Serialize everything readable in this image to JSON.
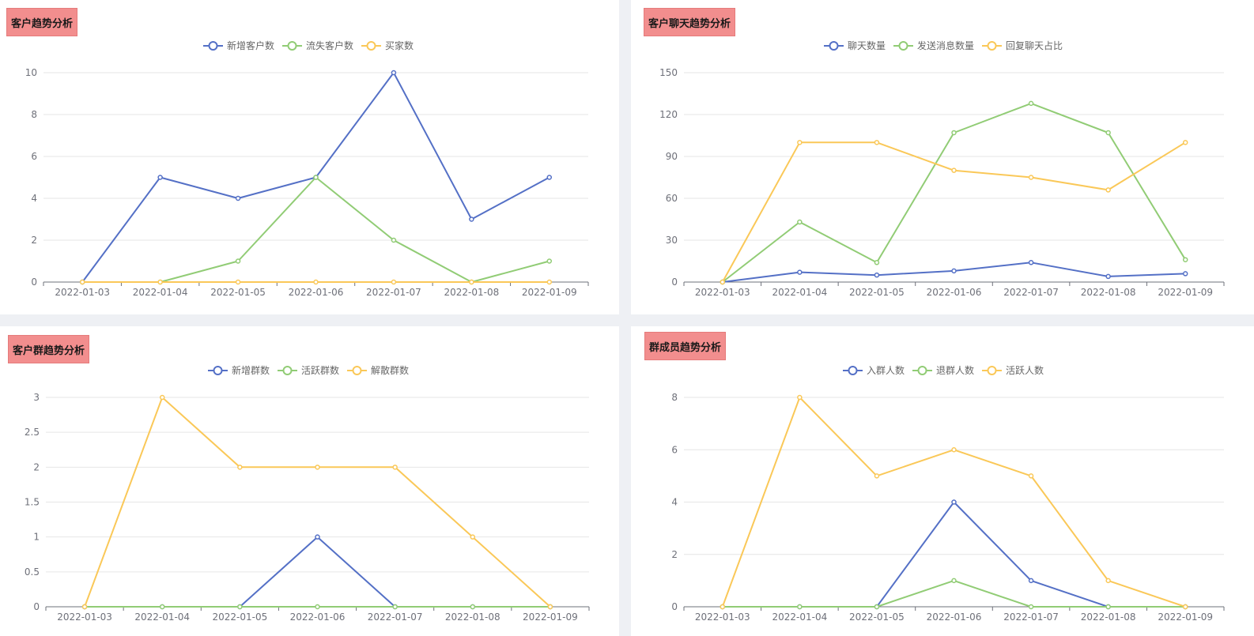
{
  "colors": {
    "blue": "#5470c6",
    "green": "#91cc75",
    "yellow": "#fac858",
    "grid": "#e6e6e6",
    "axis": "#6e7079",
    "tick_text": "#6e7079",
    "legend_text": "#666666",
    "title_bg": "#f28e8e"
  },
  "chart_data": [
    {
      "type": "line",
      "title": "客户趋势分析",
      "categories": [
        "2022-01-03",
        "2022-01-04",
        "2022-01-05",
        "2022-01-06",
        "2022-01-07",
        "2022-01-08",
        "2022-01-09"
      ],
      "yticks": [
        "0",
        "2",
        "4",
        "6",
        "8",
        "10"
      ],
      "ylim": [
        0,
        10
      ],
      "series": [
        {
          "name": "新增客户数",
          "color": "#5470c6",
          "values": [
            0,
            5,
            4,
            5,
            10,
            3,
            5
          ]
        },
        {
          "name": "流失客户数",
          "color": "#91cc75",
          "values": [
            0,
            0,
            1,
            5,
            2,
            0,
            1
          ]
        },
        {
          "name": "买家数",
          "color": "#fac858",
          "values": [
            0,
            0,
            0,
            0,
            0,
            0,
            0
          ]
        }
      ]
    },
    {
      "type": "line",
      "title": "客户聊天趋势分析",
      "categories": [
        "2022-01-03",
        "2022-01-04",
        "2022-01-05",
        "2022-01-06",
        "2022-01-07",
        "2022-01-08",
        "2022-01-09"
      ],
      "yticks": [
        "0",
        "30",
        "60",
        "90",
        "120",
        "150"
      ],
      "ylim": [
        0,
        150
      ],
      "series": [
        {
          "name": "聊天数量",
          "color": "#5470c6",
          "values": [
            0,
            7,
            5,
            8,
            14,
            4,
            6
          ]
        },
        {
          "name": "发送消息数量",
          "color": "#91cc75",
          "values": [
            0,
            43,
            14,
            107,
            128,
            107,
            16
          ]
        },
        {
          "name": "回复聊天占比",
          "color": "#fac858",
          "values": [
            0,
            100,
            100,
            80,
            75,
            66,
            100
          ]
        }
      ]
    },
    {
      "type": "line",
      "title": "客户群趋势分析",
      "categories": [
        "2022-01-03",
        "2022-01-04",
        "2022-01-05",
        "2022-01-06",
        "2022-01-07",
        "2022-01-08",
        "2022-01-09"
      ],
      "yticks": [
        "0",
        "0.5",
        "1",
        "1.5",
        "2",
        "2.5",
        "3"
      ],
      "ylim": [
        0,
        3
      ],
      "series": [
        {
          "name": "新增群数",
          "color": "#5470c6",
          "values": [
            0,
            0,
            0,
            1,
            0,
            0,
            0
          ]
        },
        {
          "name": "活跃群数",
          "color": "#91cc75",
          "values": [
            0,
            0,
            0,
            0,
            0,
            0,
            0
          ]
        },
        {
          "name": "解散群数",
          "color": "#fac858",
          "values": [
            0,
            3,
            2,
            2,
            2,
            1,
            0
          ]
        }
      ]
    },
    {
      "type": "line",
      "title": "群成员趋势分析",
      "categories": [
        "2022-01-03",
        "2022-01-04",
        "2022-01-05",
        "2022-01-06",
        "2022-01-07",
        "2022-01-08",
        "2022-01-09"
      ],
      "yticks": [
        "0",
        "2",
        "4",
        "6",
        "8"
      ],
      "ylim": [
        0,
        8
      ],
      "series": [
        {
          "name": "入群人数",
          "color": "#5470c6",
          "values": [
            0,
            0,
            0,
            4,
            1,
            0,
            0
          ]
        },
        {
          "name": "退群人数",
          "color": "#91cc75",
          "values": [
            0,
            0,
            0,
            1,
            0,
            0,
            0
          ]
        },
        {
          "name": "活跃人数",
          "color": "#fac858",
          "values": [
            0,
            8,
            5,
            6,
            5,
            1,
            0
          ]
        }
      ]
    }
  ]
}
